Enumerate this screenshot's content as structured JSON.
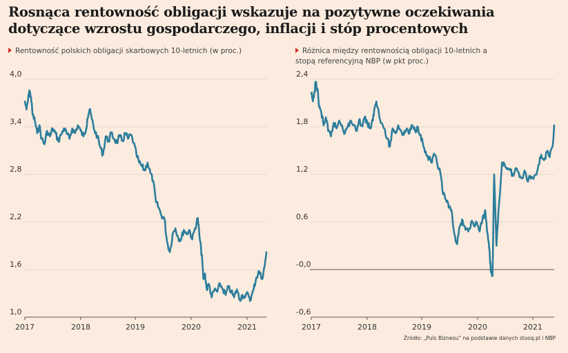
{
  "headline": "Rosnąca rentowność obligacji wskazuje na pozytywne oczekiwania dotyczące wzrostu gospodarczego, inflacji i stóp procentowych",
  "source": "Źródło: „Puls Biznesu” na podstawie danych stooq.pl i NBP",
  "colors": {
    "line": "#2c7d9b",
    "background": "#fbecdf",
    "accent": "#d0312d",
    "grid": "#e4d6c9",
    "zero": "#7a6f66"
  },
  "chart_data": [
    {
      "type": "line",
      "subtitle": "Rentowność polskich obligacji skarbowych 10-letnich (w proc.)",
      "x_ticks": [
        "2017",
        "2018",
        "2019",
        "2020",
        "2021"
      ],
      "xlim": [
        2017.0,
        2021.33
      ],
      "ylim": [
        1.0,
        4.0
      ],
      "y_ticks": [
        "4,0",
        "3,4",
        "2,8",
        "2,2",
        "1,6",
        "1,0"
      ],
      "y_tick_values": [
        4.0,
        3.4,
        2.8,
        2.2,
        1.6,
        1.0
      ],
      "grid": true,
      "series": [
        {
          "x": [
            2017.0,
            2017.03,
            2017.06,
            2017.08,
            2017.11,
            2017.14,
            2017.18,
            2017.22,
            2017.26,
            2017.3,
            2017.35,
            2017.4,
            2017.45,
            2017.5,
            2017.55,
            2017.6,
            2017.65,
            2017.7,
            2017.75,
            2017.8,
            2017.85,
            2017.9,
            2017.95,
            2018.0,
            2018.05,
            2018.1,
            2018.12,
            2018.16,
            2018.2,
            2018.25,
            2018.3,
            2018.35,
            2018.4,
            2018.45,
            2018.5,
            2018.55,
            2018.6,
            2018.65,
            2018.7,
            2018.75,
            2018.8,
            2018.85,
            2018.9,
            2018.95,
            2019.0,
            2019.05,
            2019.1,
            2019.15,
            2019.2,
            2019.25,
            2019.3,
            2019.35,
            2019.4,
            2019.45,
            2019.5,
            2019.55,
            2019.6,
            2019.65,
            2019.7,
            2019.75,
            2019.8,
            2019.85,
            2019.9,
            2019.95,
            2020.0,
            2020.05,
            2020.1,
            2020.13,
            2020.16,
            2020.18,
            2020.2,
            2020.23,
            2020.26,
            2020.3,
            2020.35,
            2020.4,
            2020.45,
            2020.5,
            2020.55,
            2020.6,
            2020.65,
            2020.7,
            2020.75,
            2020.8,
            2020.85,
            2020.9,
            2020.95,
            2021.0,
            2021.05,
            2021.1,
            2021.15,
            2021.2,
            2021.25,
            2021.3,
            2021.33
          ],
          "y": [
            3.72,
            3.62,
            3.75,
            3.86,
            3.78,
            3.55,
            3.48,
            3.32,
            3.42,
            3.25,
            3.18,
            3.35,
            3.28,
            3.38,
            3.32,
            3.22,
            3.3,
            3.38,
            3.32,
            3.25,
            3.38,
            3.32,
            3.42,
            3.35,
            3.28,
            3.38,
            3.5,
            3.62,
            3.5,
            3.35,
            3.28,
            3.15,
            3.05,
            3.28,
            3.22,
            3.32,
            3.25,
            3.2,
            3.28,
            3.22,
            3.32,
            3.25,
            3.3,
            3.2,
            3.05,
            2.95,
            2.9,
            2.85,
            2.95,
            2.82,
            2.72,
            2.45,
            2.38,
            2.28,
            2.25,
            1.95,
            1.82,
            2.05,
            2.12,
            2.0,
            1.98,
            2.1,
            2.05,
            2.1,
            1.98,
            2.12,
            2.25,
            2.02,
            1.85,
            1.72,
            1.48,
            1.55,
            1.35,
            1.42,
            1.25,
            1.35,
            1.32,
            1.42,
            1.35,
            1.28,
            1.38,
            1.32,
            1.25,
            1.35,
            1.22,
            1.28,
            1.25,
            1.3,
            1.22,
            1.35,
            1.5,
            1.58,
            1.48,
            1.65,
            1.82
          ]
        }
      ]
    },
    {
      "type": "line",
      "subtitle": "Różnica między rentownością obligacji 10-letnich a stopą referencyjną NBP (w pkt proc.)",
      "x_ticks": [
        "2017",
        "2018",
        "2019",
        "2020",
        "2021"
      ],
      "xlim": [
        2017.0,
        2021.33
      ],
      "ylim": [
        -0.6,
        2.4
      ],
      "y_ticks": [
        "2,4",
        "1,8",
        "1,2",
        "0,6",
        "-0,0",
        "-0,6"
      ],
      "y_tick_values": [
        2.4,
        1.8,
        1.2,
        0.6,
        0.0,
        -0.6
      ],
      "grid": true,
      "series": [
        {
          "x": [
            2017.0,
            2017.03,
            2017.06,
            2017.08,
            2017.11,
            2017.14,
            2017.18,
            2017.22,
            2017.26,
            2017.3,
            2017.35,
            2017.4,
            2017.45,
            2017.5,
            2017.55,
            2017.6,
            2017.65,
            2017.7,
            2017.75,
            2017.8,
            2017.85,
            2017.9,
            2017.95,
            2018.0,
            2018.05,
            2018.1,
            2018.12,
            2018.16,
            2018.2,
            2018.25,
            2018.3,
            2018.35,
            2018.4,
            2018.45,
            2018.5,
            2018.55,
            2018.6,
            2018.65,
            2018.7,
            2018.75,
            2018.8,
            2018.85,
            2018.9,
            2018.95,
            2019.0,
            2019.05,
            2019.1,
            2019.15,
            2019.2,
            2019.25,
            2019.3,
            2019.35,
            2019.4,
            2019.45,
            2019.5,
            2019.55,
            2019.6,
            2019.65,
            2019.7,
            2019.75,
            2019.8,
            2019.85,
            2019.9,
            2019.95,
            2020.0,
            2020.05,
            2020.1,
            2020.13,
            2020.16,
            2020.18,
            2020.2,
            2020.23,
            2020.26,
            2020.3,
            2020.35,
            2020.4,
            2020.45,
            2020.5,
            2020.55,
            2020.6,
            2020.65,
            2020.7,
            2020.75,
            2020.8,
            2020.85,
            2020.9,
            2020.95,
            2021.0,
            2021.05,
            2021.1,
            2021.15,
            2021.2,
            2021.25,
            2021.3,
            2021.33
          ],
          "y": [
            2.22,
            2.12,
            2.25,
            2.36,
            2.28,
            2.05,
            1.98,
            1.82,
            1.92,
            1.75,
            1.68,
            1.85,
            1.78,
            1.88,
            1.82,
            1.72,
            1.8,
            1.88,
            1.82,
            1.75,
            1.88,
            1.82,
            1.92,
            1.85,
            1.78,
            1.88,
            2.0,
            2.12,
            2.0,
            1.85,
            1.78,
            1.65,
            1.55,
            1.78,
            1.72,
            1.82,
            1.75,
            1.7,
            1.78,
            1.72,
            1.82,
            1.75,
            1.8,
            1.7,
            1.55,
            1.45,
            1.4,
            1.35,
            1.45,
            1.32,
            1.22,
            0.95,
            0.88,
            0.78,
            0.75,
            0.45,
            0.32,
            0.55,
            0.62,
            0.5,
            0.48,
            0.6,
            0.55,
            0.6,
            0.48,
            0.62,
            0.75,
            0.52,
            0.35,
            0.22,
            -0.02,
            -0.08,
            1.2,
            0.3,
            0.85,
            1.35,
            1.32,
            1.28,
            1.25,
            1.18,
            1.28,
            1.22,
            1.15,
            1.25,
            1.12,
            1.18,
            1.15,
            1.2,
            1.32,
            1.45,
            1.38,
            1.48,
            1.42,
            1.55,
            1.82
          ]
        }
      ]
    }
  ]
}
